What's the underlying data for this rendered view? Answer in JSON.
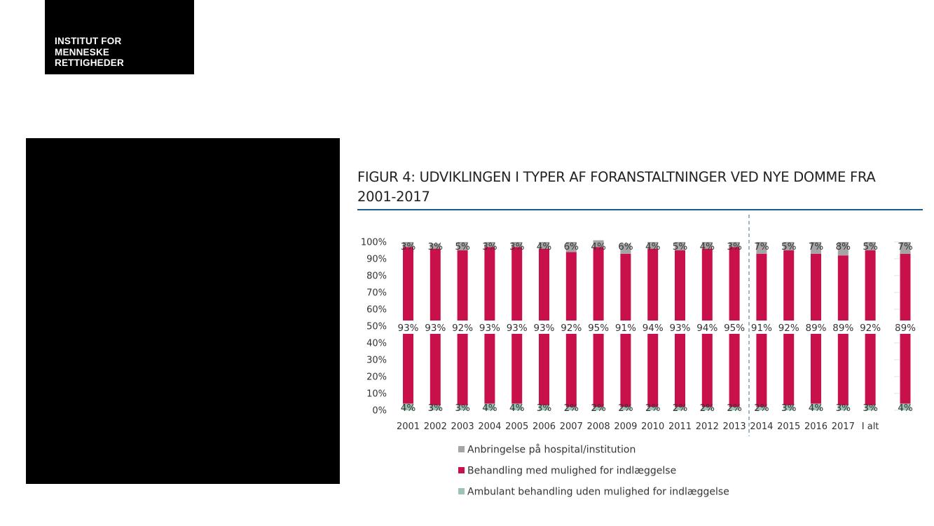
{
  "logo": {
    "text": "INSTITUT FOR\nMENNESKE\nRETTIGHEDER"
  },
  "figure": {
    "title": "FIGUR 4: UDVIKLINGEN I TYPER AF FORANSTALTNINGER VED NYE DOMME FRA 2001-2017"
  },
  "chart_data": {
    "type": "bar",
    "stacked": true,
    "title": "FIGUR 4: UDVIKLINGEN I TYPER AF FORANSTALTNINGER VED NYE DOMME FRA 2001-2017",
    "xlabel": "",
    "ylabel": "",
    "ylim": [
      0,
      100
    ],
    "y_ticks": [
      "0%",
      "10%",
      "20%",
      "30%",
      "40%",
      "50%",
      "60%",
      "70%",
      "80%",
      "90%",
      "100%"
    ],
    "categories": [
      "2001",
      "2002",
      "2003",
      "2004",
      "2005",
      "2006",
      "2007",
      "2008",
      "2009",
      "2010",
      "2011",
      "2012",
      "2013",
      "2014",
      "2015",
      "2016",
      "2017",
      "I alt"
    ],
    "series": [
      {
        "name": "Ambulant behandling uden mulighed for indlæggelse",
        "color": "#9bc4b3",
        "values": [
          4,
          3,
          3,
          4,
          4,
          3,
          2,
          2,
          2,
          2,
          2,
          2,
          2,
          2,
          3,
          4,
          3,
          3
        ],
        "labels": [
          "4%",
          "3%",
          "3%",
          "4%",
          "4%",
          "3%",
          "2%",
          "2%",
          "2%",
          "2%",
          "2%",
          "2%",
          "2%",
          "2%",
          "3%",
          "4%",
          "3%",
          "3%"
        ]
      },
      {
        "name": "Behandling med mulighed for indlæggelse",
        "color": "#c8104a",
        "values": [
          93,
          93,
          92,
          93,
          93,
          93,
          92,
          95,
          91,
          94,
          93,
          94,
          95,
          91,
          92,
          89,
          89,
          92
        ],
        "labels": [
          "93%",
          "93%",
          "92%",
          "93%",
          "93%",
          "93%",
          "92%",
          "95%",
          "91%",
          "94%",
          "93%",
          "94%",
          "95%",
          "91%",
          "92%",
          "89%",
          "89%",
          "92%"
        ]
      },
      {
        "name": "Anbringelse på hospital/institution",
        "color": "#a5a5a5",
        "values": [
          3,
          3,
          5,
          3,
          3,
          4,
          6,
          4,
          6,
          4,
          5,
          4,
          3,
          7,
          5,
          7,
          8,
          5
        ],
        "labels": [
          "3%",
          "3%",
          "5%",
          "3%",
          "3%",
          "4%",
          "6%",
          "4%",
          "6%",
          "4%",
          "5%",
          "4%",
          "3%",
          "7%",
          "5%",
          "7%",
          "8%",
          "5%"
        ]
      }
    ],
    "cut_off_bar": {
      "labels": [
        "4%",
        "89%",
        "7%"
      ],
      "values": [
        4,
        89,
        7
      ]
    },
    "legend": {
      "position": "bottom",
      "entries": [
        "Anbringelse på hospital/institution",
        "Behandling med mulighed for indlæggelse",
        "Ambulant behandling uden mulighed for indlæggelse"
      ]
    },
    "divider_after_category": "2013",
    "grid": false
  }
}
